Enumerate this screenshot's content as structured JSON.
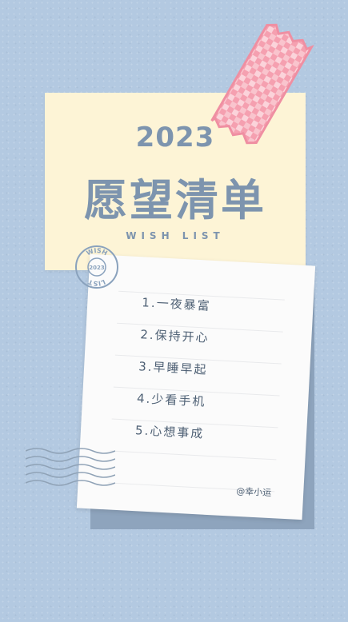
{
  "header": {
    "year": "2023",
    "title": "愿望清单",
    "subtitle": "WISH LIST"
  },
  "stamp": {
    "top_text": "WISH",
    "bottom_text": "LIST",
    "center_text": "2023"
  },
  "wishes": [
    "1.一夜暴富",
    "2.保持开心",
    "3.早睡早起",
    "4.少看手机",
    "5.心想事成"
  ],
  "signature": "@幸小运",
  "colors": {
    "background": "#b3c9e1",
    "note": "#fdf4d6",
    "tape": "#f59aaa",
    "ink": "#7d94ae"
  }
}
